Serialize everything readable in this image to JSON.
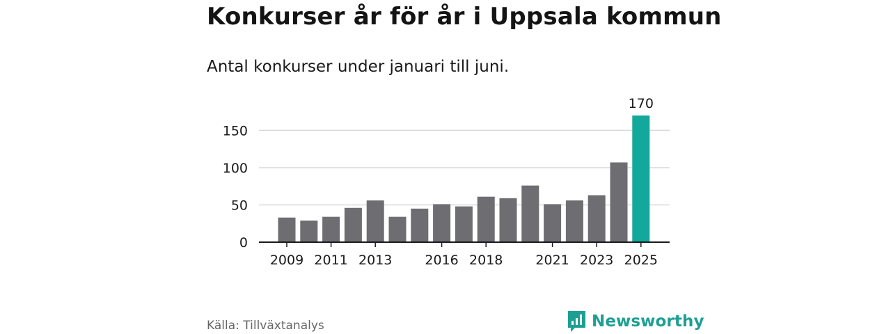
{
  "title": "Konkurser år för år i Uppsala kommun",
  "subtitle": "Antal konkurser under januari till juni.",
  "source": "Källa: Tillväxtanalys",
  "brand": {
    "name": "Newsworthy",
    "icon": "bar-chart-speech-bubble-icon",
    "color": "#1e9f94"
  },
  "chart_data": {
    "type": "bar",
    "x": [
      2009,
      2010,
      2011,
      2012,
      2013,
      2014,
      2015,
      2016,
      2017,
      2018,
      2019,
      2020,
      2021,
      2022,
      2023,
      2024,
      2025
    ],
    "values": [
      33,
      29,
      34,
      46,
      56,
      34,
      45,
      51,
      48,
      61,
      59,
      76,
      51,
      56,
      63,
      107,
      170
    ],
    "x_tick_labels": [
      "2009",
      "2011",
      "2013",
      "2016",
      "2018",
      "2021",
      "2023",
      "2025"
    ],
    "y_ticks": [
      0,
      50,
      100,
      150
    ],
    "ylim": [
      0,
      170
    ],
    "grid": true,
    "bar_color": "#6e6d72",
    "highlight_color": "#12a89c",
    "highlight_x": 2025,
    "annotations": [
      {
        "x": 2025,
        "text": "170"
      }
    ]
  }
}
